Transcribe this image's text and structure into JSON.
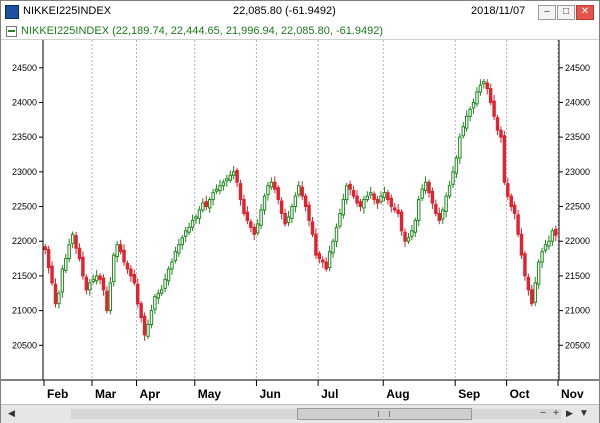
{
  "window": {
    "title": "NIKKEI225INDEX",
    "quote": "22,085.80 (-61.9492)",
    "date": "2018/11/07",
    "controls": {
      "minimize": "–",
      "maximize": "□",
      "close": "✕"
    }
  },
  "legend": {
    "text": "NIKKEI225INDEX (22,189.74, 22,444.65, 21,996.94, 22,085.80, -61.9492)",
    "color": "#228b22"
  },
  "scrollbar": {
    "left_arrow": "◀",
    "right_arrow": "▶",
    "buttons": [
      "−",
      "+",
      "▼"
    ]
  },
  "chart_data": {
    "type": "candlestick",
    "series_name": "NIKKEI225INDEX",
    "y_ticks": [
      20500,
      21000,
      21500,
      22000,
      22500,
      23000,
      23500,
      24000,
      24500
    ],
    "y_tick_labels": [
      "20500",
      "21000",
      "21500",
      "22000",
      "22500",
      "23000",
      "23500",
      "24000",
      "24500"
    ],
    "ylim": [
      20000,
      24900
    ],
    "x_months": [
      "Feb",
      "Mar",
      "Apr",
      "May",
      "Jun",
      "Jul",
      "Aug",
      "Sep",
      "Oct",
      "Nov"
    ],
    "colors": {
      "up": "#1f8a1f",
      "down": "#e0232e",
      "grid": "#b4b4b4"
    },
    "grid": true,
    "closes": [
      21880,
      21620,
      21400,
      21100,
      21250,
      21600,
      21750,
      21950,
      22100,
      21900,
      21750,
      21500,
      21300,
      21400,
      21450,
      21500,
      21450,
      21300,
      21000,
      21400,
      21800,
      21950,
      21850,
      21700,
      21600,
      21500,
      21400,
      21100,
      20900,
      20650,
      20800,
      21000,
      21200,
      21250,
      21300,
      21450,
      21600,
      21700,
      21850,
      21950,
      22050,
      22150,
      22200,
      22300,
      22350,
      22450,
      22550,
      22500,
      22600,
      22700,
      22750,
      22800,
      22850,
      22900,
      22950,
      23000,
      22850,
      22600,
      22400,
      22300,
      22200,
      22100,
      22250,
      22450,
      22650,
      22800,
      22850,
      22750,
      22600,
      22400,
      22250,
      22350,
      22500,
      22650,
      22800,
      22650,
      22500,
      22300,
      22100,
      21800,
      21750,
      21700,
      21600,
      21850,
      22000,
      22200,
      22400,
      22600,
      22800,
      22750,
      22650,
      22550,
      22500,
      22600,
      22650,
      22700,
      22600,
      22550,
      22650,
      22700,
      22600,
      22500,
      22450,
      22400,
      22150,
      22000,
      22050,
      22150,
      22300,
      22600,
      22750,
      22850,
      22700,
      22550,
      22400,
      22300,
      22450,
      22650,
      22800,
      23000,
      23200,
      23500,
      23650,
      23800,
      23900,
      24000,
      24150,
      24250,
      24300,
      24200,
      24000,
      23800,
      23600,
      23500,
      22850,
      22650,
      22500,
      22400,
      22100,
      21800,
      21500,
      21300,
      21100,
      21400,
      21700,
      21850,
      21950,
      22000,
      22150,
      22086
    ]
  }
}
